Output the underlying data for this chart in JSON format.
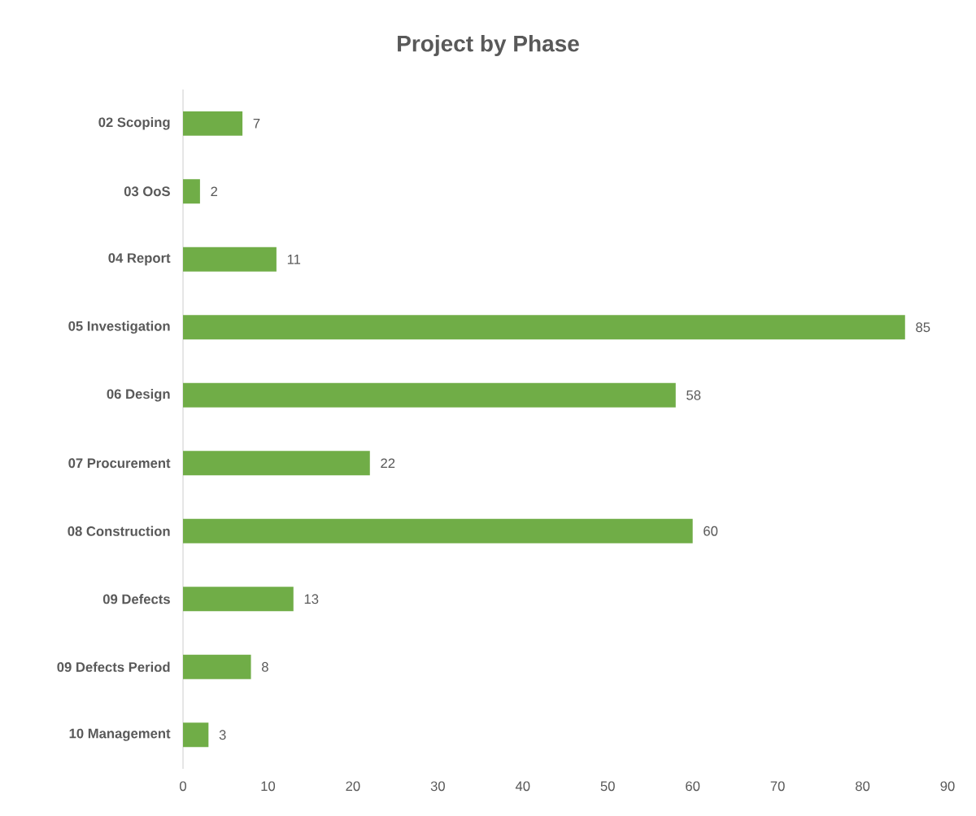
{
  "chart_data": {
    "type": "bar",
    "orientation": "horizontal",
    "title": "Project by Phase",
    "categories": [
      "02 Scoping",
      "03 OoS",
      "04 Report",
      "05 Investigation",
      "06 Design",
      "07 Procurement",
      "08 Construction",
      "09 Defects",
      "09 Defects Period",
      "10 Management"
    ],
    "values": [
      7,
      2,
      11,
      85,
      58,
      22,
      60,
      13,
      8,
      3
    ],
    "color": "#70ad47",
    "xlim": [
      0,
      90
    ],
    "xticks": [
      0,
      10,
      20,
      30,
      40,
      50,
      60,
      70,
      80,
      90
    ],
    "data_labels": true,
    "grid": false
  }
}
